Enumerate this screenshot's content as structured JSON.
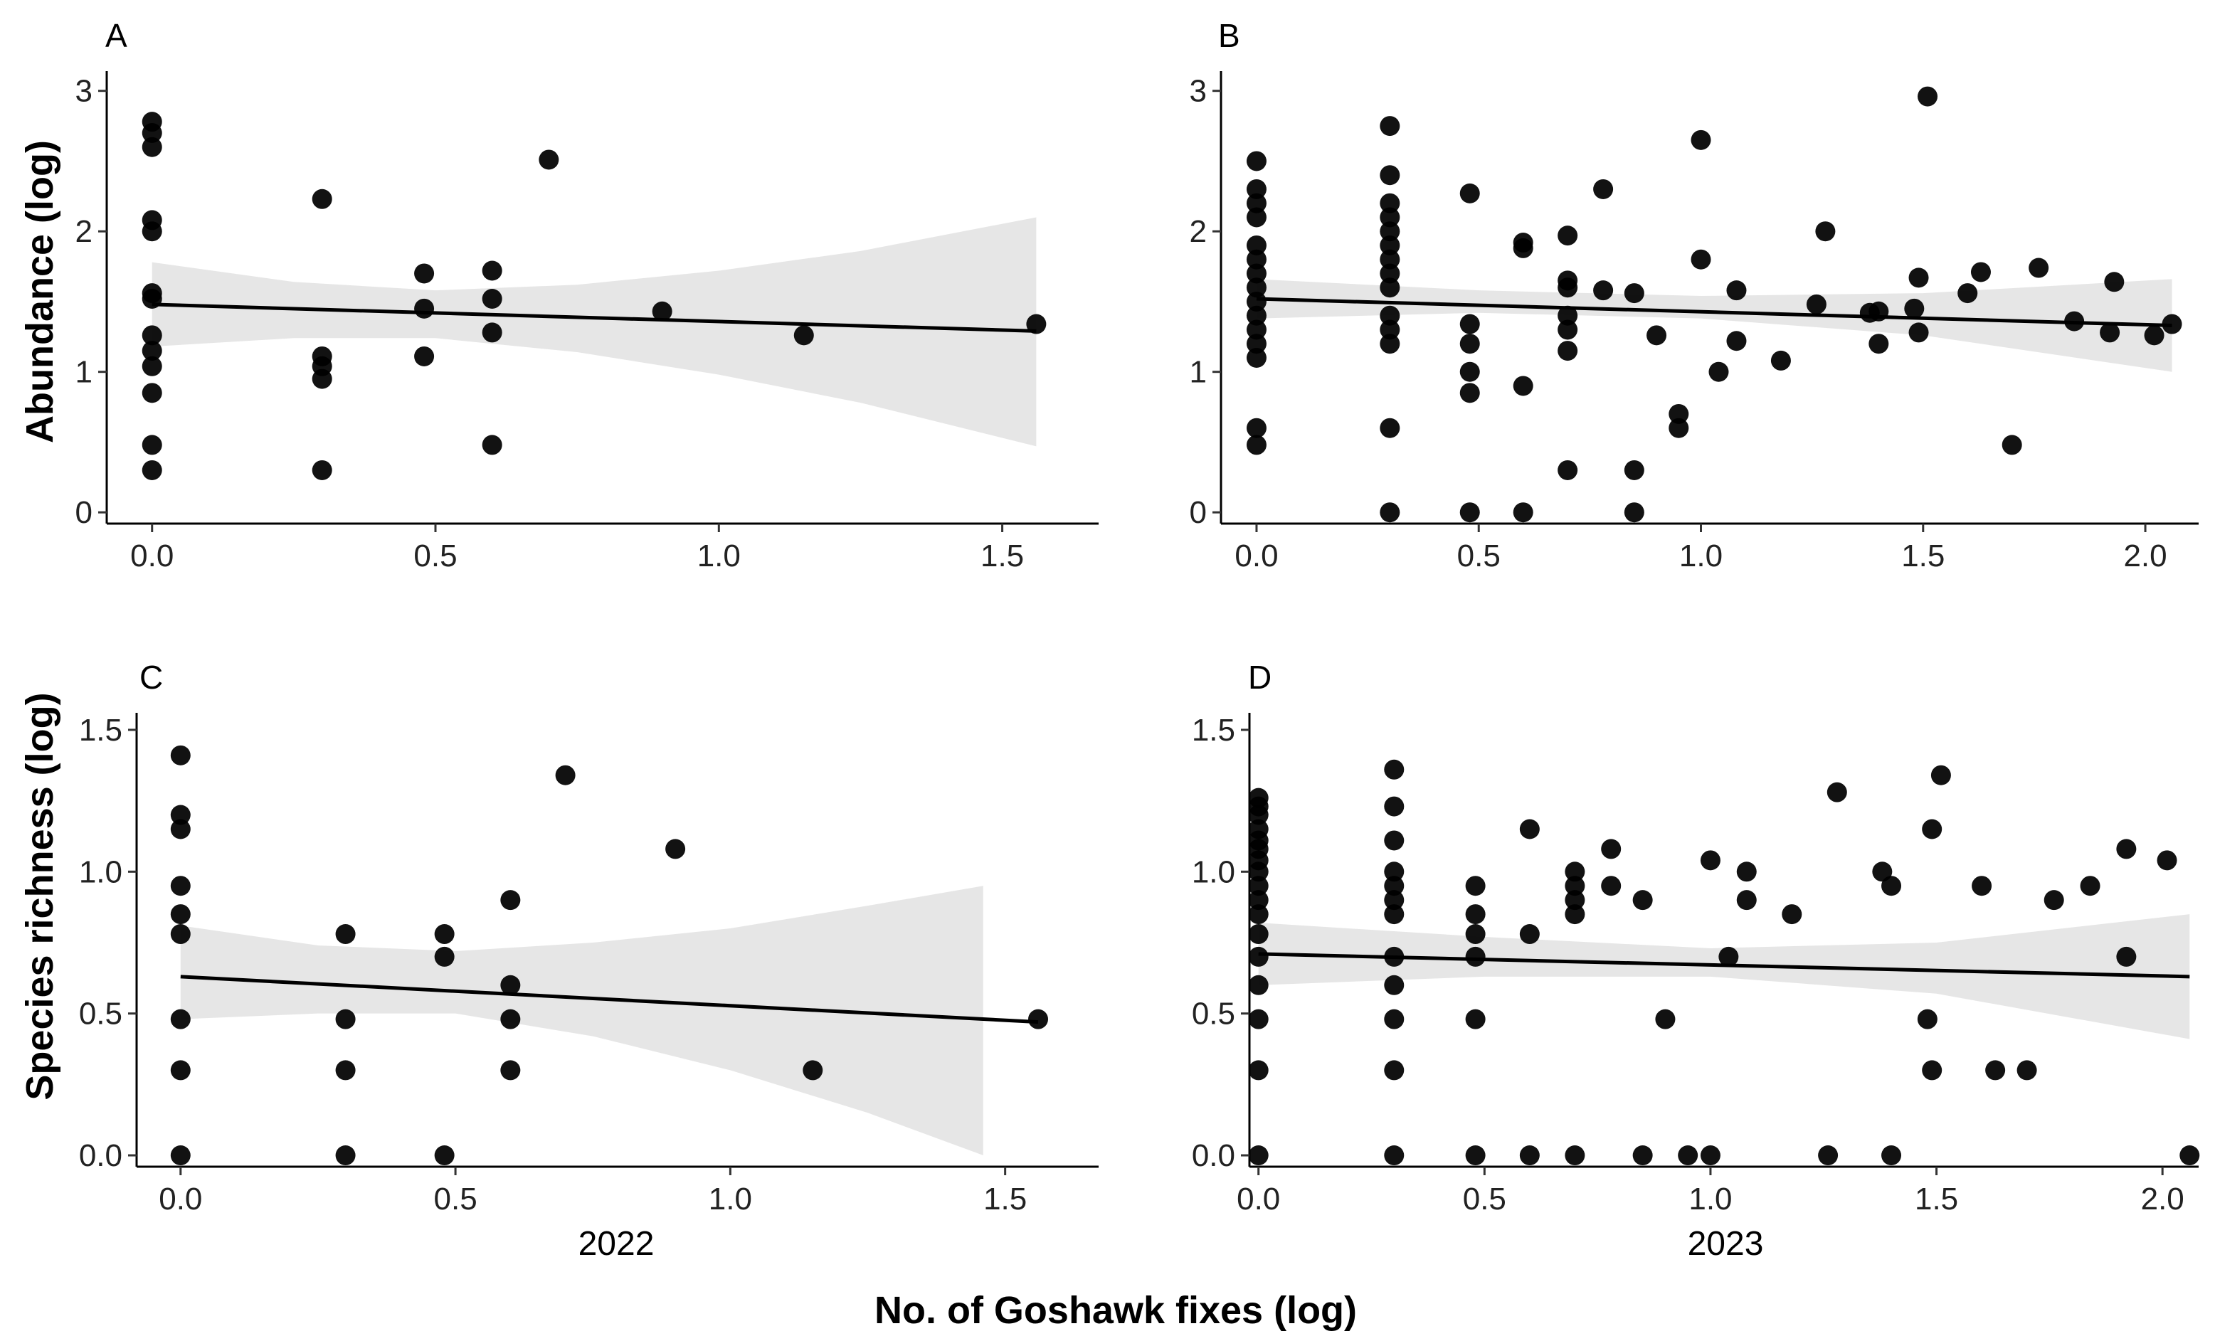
{
  "figure": {
    "x_axis_title": "No. of Goshawk fixes (log)",
    "row_labels": [
      "Abundance (log)",
      "Species richness (log)"
    ],
    "year_labels": [
      "2022",
      "2023"
    ]
  },
  "chart_data": [
    {
      "type": "scatter",
      "panel": "A",
      "year": "2022",
      "ylabel": "Abundance (log)",
      "xlim": [
        -0.08,
        1.67
      ],
      "ylim": [
        -0.08,
        3.12
      ],
      "xticks": [
        0.0,
        0.5,
        1.0,
        1.5
      ],
      "xtick_labels": [
        "0.0",
        "0.5",
        "1.0",
        "1.5"
      ],
      "yticks": [
        0,
        1,
        2,
        3
      ],
      "ytick_labels": [
        "0",
        "1",
        "2",
        "3"
      ],
      "points": [
        [
          0,
          0.3
        ],
        [
          0,
          0.48
        ],
        [
          0,
          0.85
        ],
        [
          0,
          1.04
        ],
        [
          0,
          1.15
        ],
        [
          0,
          1.26
        ],
        [
          0,
          1.52
        ],
        [
          0,
          1.56
        ],
        [
          0,
          2.0
        ],
        [
          0,
          2.08
        ],
        [
          0,
          2.6
        ],
        [
          0,
          2.7
        ],
        [
          0,
          2.78
        ],
        [
          0.3,
          0.3
        ],
        [
          0.3,
          0.95
        ],
        [
          0.3,
          1.04
        ],
        [
          0.3,
          1.11
        ],
        [
          0.3,
          2.23
        ],
        [
          0.48,
          1.11
        ],
        [
          0.48,
          1.45
        ],
        [
          0.48,
          1.7
        ],
        [
          0.6,
          0.48
        ],
        [
          0.6,
          1.28
        ],
        [
          0.6,
          1.52
        ],
        [
          0.6,
          1.72
        ],
        [
          0.7,
          2.51
        ],
        [
          0.9,
          1.43
        ],
        [
          1.15,
          1.26
        ],
        [
          1.56,
          1.34
        ]
      ],
      "fit": {
        "x": [
          0,
          1.56
        ],
        "y": [
          1.48,
          1.29
        ]
      },
      "band": {
        "x": [
          0,
          0.25,
          0.5,
          0.75,
          1.0,
          1.25,
          1.56
        ],
        "lower": [
          1.18,
          1.24,
          1.24,
          1.14,
          0.98,
          0.78,
          0.47
        ],
        "upper": [
          1.78,
          1.64,
          1.58,
          1.62,
          1.72,
          1.86,
          2.1
        ]
      }
    },
    {
      "type": "scatter",
      "panel": "B",
      "year": "2023",
      "ylabel": "Abundance (log)",
      "xlim": [
        -0.08,
        2.12
      ],
      "ylim": [
        -0.08,
        3.12
      ],
      "xticks": [
        0.0,
        0.5,
        1.0,
        1.5,
        2.0
      ],
      "xtick_labels": [
        "0.0",
        "0.5",
        "1.0",
        "1.5",
        "2.0"
      ],
      "yticks": [
        0,
        1,
        2,
        3
      ],
      "ytick_labels": [
        "0",
        "1",
        "2",
        "3"
      ],
      "points": [
        [
          0,
          0.48
        ],
        [
          0,
          0.6
        ],
        [
          0,
          1.1
        ],
        [
          0,
          1.2
        ],
        [
          0,
          1.3
        ],
        [
          0,
          1.4
        ],
        [
          0,
          1.5
        ],
        [
          0,
          1.6
        ],
        [
          0,
          1.7
        ],
        [
          0,
          1.8
        ],
        [
          0,
          1.9
        ],
        [
          0,
          2.1
        ],
        [
          0,
          2.2
        ],
        [
          0,
          2.3
        ],
        [
          0,
          2.5
        ],
        [
          0.3,
          0
        ],
        [
          0.3,
          0.6
        ],
        [
          0.3,
          1.2
        ],
        [
          0.3,
          1.3
        ],
        [
          0.3,
          1.4
        ],
        [
          0.3,
          1.6
        ],
        [
          0.3,
          1.7
        ],
        [
          0.3,
          1.8
        ],
        [
          0.3,
          1.9
        ],
        [
          0.3,
          2.0
        ],
        [
          0.3,
          2.1
        ],
        [
          0.3,
          2.2
        ],
        [
          0.3,
          2.4
        ],
        [
          0.3,
          2.75
        ],
        [
          0.48,
          0
        ],
        [
          0.48,
          0.85
        ],
        [
          0.48,
          1.0
        ],
        [
          0.48,
          1.2
        ],
        [
          0.48,
          1.34
        ],
        [
          0.48,
          2.27
        ],
        [
          0.6,
          0
        ],
        [
          0.6,
          0.9
        ],
        [
          0.6,
          1.88
        ],
        [
          0.6,
          1.92
        ],
        [
          0.7,
          0.3
        ],
        [
          0.7,
          1.15
        ],
        [
          0.7,
          1.3
        ],
        [
          0.7,
          1.4
        ],
        [
          0.7,
          1.6
        ],
        [
          0.7,
          1.65
        ],
        [
          0.7,
          1.97
        ],
        [
          0.78,
          1.58
        ],
        [
          0.78,
          2.3
        ],
        [
          0.85,
          0
        ],
        [
          0.85,
          0.3
        ],
        [
          0.85,
          1.56
        ],
        [
          0.9,
          1.26
        ],
        [
          0.95,
          0.6
        ],
        [
          0.95,
          0.7
        ],
        [
          1.0,
          1.8
        ],
        [
          1.0,
          2.65
        ],
        [
          1.04,
          1.0
        ],
        [
          1.08,
          1.22
        ],
        [
          1.08,
          1.58
        ],
        [
          1.18,
          1.08
        ],
        [
          1.26,
          1.48
        ],
        [
          1.28,
          2.0
        ],
        [
          1.38,
          1.42
        ],
        [
          1.4,
          1.2
        ],
        [
          1.4,
          1.43
        ],
        [
          1.48,
          1.45
        ],
        [
          1.49,
          1.28
        ],
        [
          1.49,
          1.67
        ],
        [
          1.51,
          2.96
        ],
        [
          1.6,
          1.56
        ],
        [
          1.63,
          1.71
        ],
        [
          1.7,
          0.48
        ],
        [
          1.76,
          1.74
        ],
        [
          1.84,
          1.36
        ],
        [
          1.92,
          1.28
        ],
        [
          1.93,
          1.64
        ],
        [
          2.02,
          1.26
        ],
        [
          2.06,
          1.34
        ]
      ],
      "fit": {
        "x": [
          0,
          2.06
        ],
        "y": [
          1.52,
          1.33
        ]
      },
      "band": {
        "x": [
          0,
          0.5,
          1.0,
          1.5,
          2.06
        ],
        "lower": [
          1.38,
          1.42,
          1.38,
          1.26,
          1.0
        ],
        "upper": [
          1.66,
          1.58,
          1.54,
          1.56,
          1.66
        ]
      }
    },
    {
      "type": "scatter",
      "panel": "C",
      "year": "2022",
      "ylabel": "Species richness (log)",
      "xlim": [
        -0.08,
        1.67
      ],
      "ylim": [
        -0.04,
        1.55
      ],
      "xticks": [
        0.0,
        0.5,
        1.0,
        1.5
      ],
      "xtick_labels": [
        "0.0",
        "0.5",
        "1.0",
        "1.5"
      ],
      "yticks": [
        0.0,
        0.5,
        1.0,
        1.5
      ],
      "ytick_labels": [
        "0.0",
        "0.5",
        "1.0",
        "1.5"
      ],
      "points": [
        [
          0,
          0
        ],
        [
          0,
          0.3
        ],
        [
          0,
          0.48
        ],
        [
          0,
          0.78
        ],
        [
          0,
          0.85
        ],
        [
          0,
          0.95
        ],
        [
          0,
          1.15
        ],
        [
          0,
          1.2
        ],
        [
          0,
          1.41
        ],
        [
          0.3,
          0
        ],
        [
          0.3,
          0.3
        ],
        [
          0.3,
          0.48
        ],
        [
          0.3,
          0.78
        ],
        [
          0.48,
          0
        ],
        [
          0.48,
          0.7
        ],
        [
          0.48,
          0.78
        ],
        [
          0.6,
          0.3
        ],
        [
          0.6,
          0.48
        ],
        [
          0.6,
          0.6
        ],
        [
          0.6,
          0.9
        ],
        [
          0.7,
          1.34
        ],
        [
          0.9,
          1.08
        ],
        [
          1.15,
          0.3
        ],
        [
          1.56,
          0.48
        ]
      ],
      "fit": {
        "x": [
          0,
          1.56
        ],
        "y": [
          0.63,
          0.47
        ]
      },
      "band": {
        "x": [
          0,
          0.25,
          0.5,
          0.75,
          1.0,
          1.25,
          1.46
        ],
        "lower": [
          0.48,
          0.5,
          0.5,
          0.42,
          0.3,
          0.15,
          0.0
        ],
        "upper": [
          0.81,
          0.74,
          0.72,
          0.75,
          0.8,
          0.88,
          0.95
        ]
      }
    },
    {
      "type": "scatter",
      "panel": "D",
      "year": "2023",
      "ylabel": "Species richness (log)",
      "xlim": [
        -0.02,
        2.08
      ],
      "ylim": [
        -0.04,
        1.55
      ],
      "xticks": [
        0.0,
        0.5,
        1.0,
        1.5,
        2.0
      ],
      "xtick_labels": [
        "0.0",
        "0.5",
        "1.0",
        "1.5",
        "2.0"
      ],
      "yticks": [
        0.0,
        0.5,
        1.0,
        1.5
      ],
      "ytick_labels": [
        "0.0",
        "0.5",
        "1.0",
        "1.5"
      ],
      "points": [
        [
          0,
          0
        ],
        [
          0,
          0.3
        ],
        [
          0,
          0.48
        ],
        [
          0,
          0.6
        ],
        [
          0,
          0.7
        ],
        [
          0,
          0.78
        ],
        [
          0,
          0.85
        ],
        [
          0,
          0.9
        ],
        [
          0,
          0.95
        ],
        [
          0,
          1.0
        ],
        [
          0,
          1.04
        ],
        [
          0,
          1.08
        ],
        [
          0,
          1.11
        ],
        [
          0,
          1.15
        ],
        [
          0,
          1.2
        ],
        [
          0,
          1.23
        ],
        [
          0,
          1.26
        ],
        [
          0.3,
          0
        ],
        [
          0.3,
          0.3
        ],
        [
          0.3,
          0.48
        ],
        [
          0.3,
          0.6
        ],
        [
          0.3,
          0.7
        ],
        [
          0.3,
          0.85
        ],
        [
          0.3,
          0.9
        ],
        [
          0.3,
          0.95
        ],
        [
          0.3,
          1.0
        ],
        [
          0.3,
          1.11
        ],
        [
          0.3,
          1.23
        ],
        [
          0.3,
          1.36
        ],
        [
          0.48,
          0
        ],
        [
          0.48,
          0.48
        ],
        [
          0.48,
          0.7
        ],
        [
          0.48,
          0.78
        ],
        [
          0.48,
          0.85
        ],
        [
          0.48,
          0.95
        ],
        [
          0.6,
          0
        ],
        [
          0.6,
          0.78
        ],
        [
          0.6,
          1.15
        ],
        [
          0.7,
          0
        ],
        [
          0.7,
          0.85
        ],
        [
          0.7,
          0.9
        ],
        [
          0.7,
          0.95
        ],
        [
          0.7,
          1.0
        ],
        [
          0.78,
          0.95
        ],
        [
          0.78,
          1.08
        ],
        [
          0.85,
          0
        ],
        [
          0.85,
          0.9
        ],
        [
          0.9,
          0.48
        ],
        [
          0.95,
          0
        ],
        [
          1.0,
          0
        ],
        [
          1.0,
          1.04
        ],
        [
          1.04,
          0.7
        ],
        [
          1.08,
          0.9
        ],
        [
          1.08,
          1.0
        ],
        [
          1.18,
          0.85
        ],
        [
          1.26,
          0
        ],
        [
          1.28,
          1.28
        ],
        [
          1.38,
          1.0
        ],
        [
          1.4,
          0
        ],
        [
          1.4,
          0.95
        ],
        [
          1.48,
          0.48
        ],
        [
          1.49,
          0.3
        ],
        [
          1.49,
          1.15
        ],
        [
          1.51,
          1.34
        ],
        [
          1.6,
          0.95
        ],
        [
          1.63,
          0.3
        ],
        [
          1.7,
          0.3
        ],
        [
          1.76,
          0.9
        ],
        [
          1.84,
          0.95
        ],
        [
          1.92,
          0.7
        ],
        [
          1.92,
          1.08
        ],
        [
          2.01,
          1.04
        ],
        [
          2.06,
          0
        ]
      ],
      "fit": {
        "x": [
          0,
          2.06
        ],
        "y": [
          0.71,
          0.63
        ]
      },
      "band": {
        "x": [
          0,
          0.5,
          1.0,
          1.5,
          2.06
        ],
        "lower": [
          0.6,
          0.63,
          0.63,
          0.57,
          0.41
        ],
        "upper": [
          0.82,
          0.77,
          0.73,
          0.75,
          0.85
        ]
      }
    }
  ]
}
